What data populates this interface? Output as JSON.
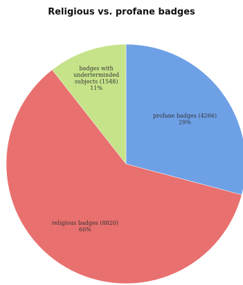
{
  "chart_data": {
    "type": "pie",
    "title": "Religious vs. profane badges",
    "slices": [
      {
        "label": "profane badges (4266)",
        "count": 4266,
        "percent_label": "29%",
        "color": "#6ea0e6"
      },
      {
        "label": "religious badges (8820)",
        "count": 8820,
        "percent_label": "60%",
        "color": "#e8706e"
      },
      {
        "label": "badges with underterminded subjects (1548)",
        "count": 1548,
        "percent_label": "11%",
        "color": "#c6e38a"
      }
    ]
  }
}
